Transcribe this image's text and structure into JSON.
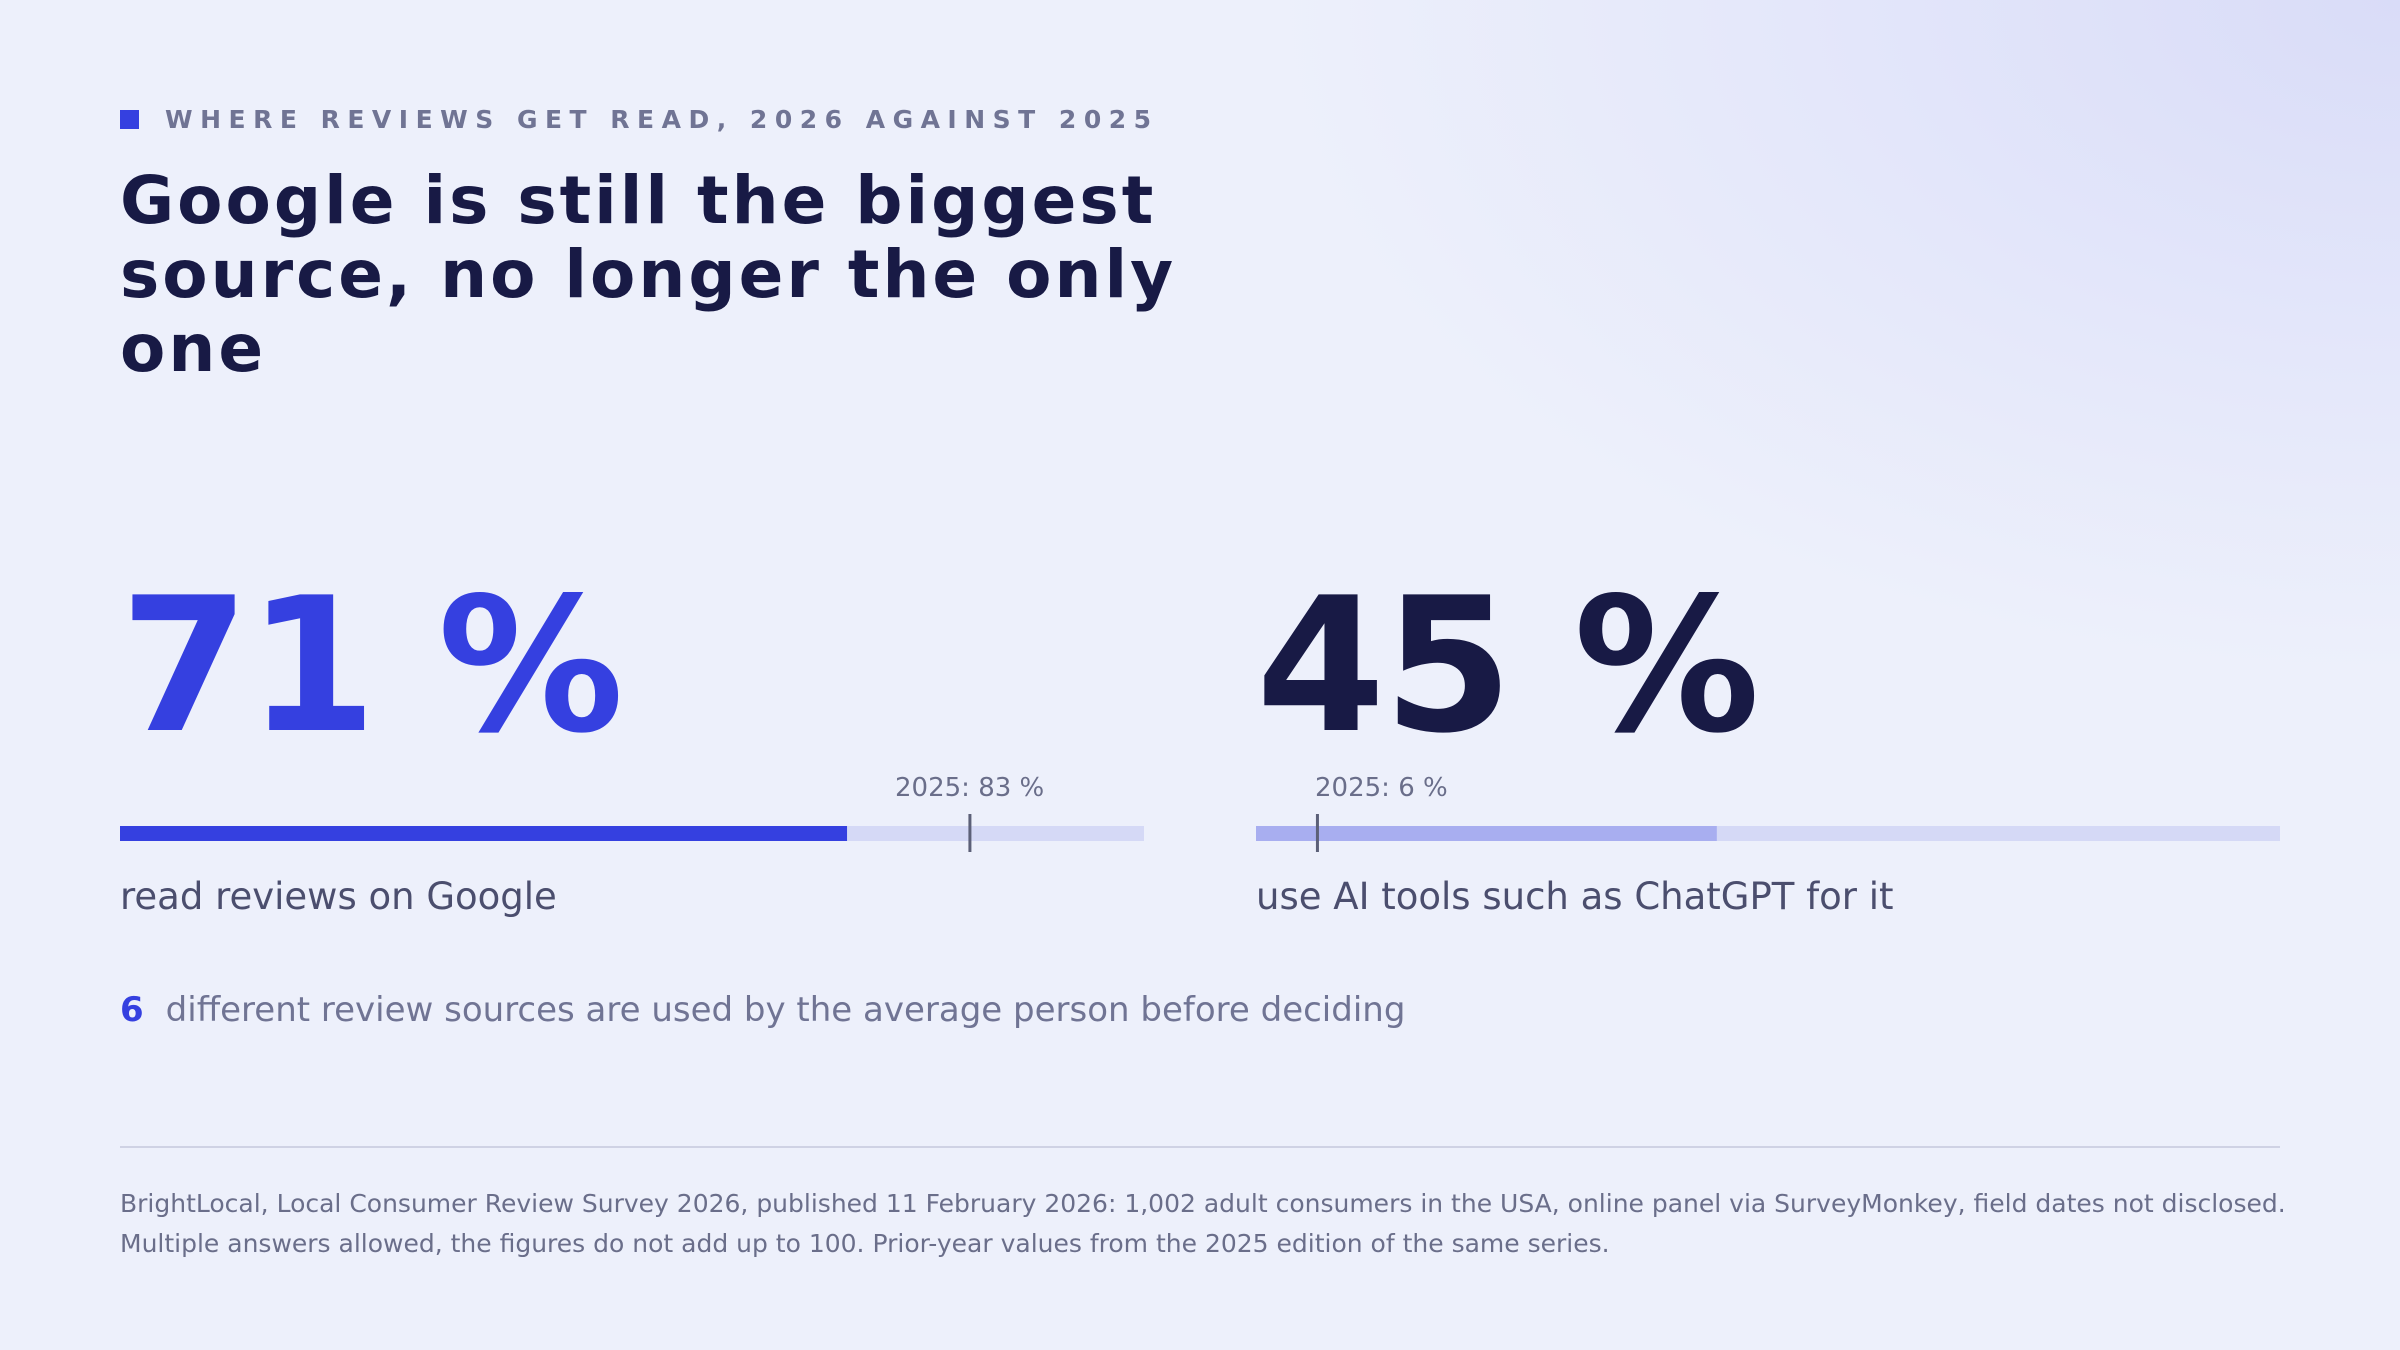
{
  "eyebrow": "WHERE REVIEWS GET READ, 2026 AGAINST 2025",
  "headline": "Google is still the biggest source, no longer the only one",
  "chart_data": {
    "type": "bar",
    "scale_max": 100,
    "unit": "%",
    "metrics": [
      {
        "value_label": "71 %",
        "value": 71,
        "prior_label": "2025: 83 %",
        "prior_value": 83,
        "label": "read reviews on Google",
        "fill_color": "#3540e0"
      },
      {
        "value_label": "45 %",
        "value": 45,
        "prior_label": "2025: 6 %",
        "prior_value": 6,
        "label": "use AI tools such as ChatGPT for it",
        "fill_color": "#a8aef0"
      }
    ],
    "track_color": "#d5d9f6",
    "marker_color": "#5c6078"
  },
  "stat": {
    "number": "6",
    "text": "different review sources are used by the average person before deciding"
  },
  "source": "BrightLocal, Local Consumer Review Survey 2026, published 11 February 2026: 1,002 adult consumers in the USA, online panel via SurveyMonkey, field dates not disclosed. Multiple answers allowed, the figures do not add up to 100. Prior-year values from the 2025 edition of the same series."
}
